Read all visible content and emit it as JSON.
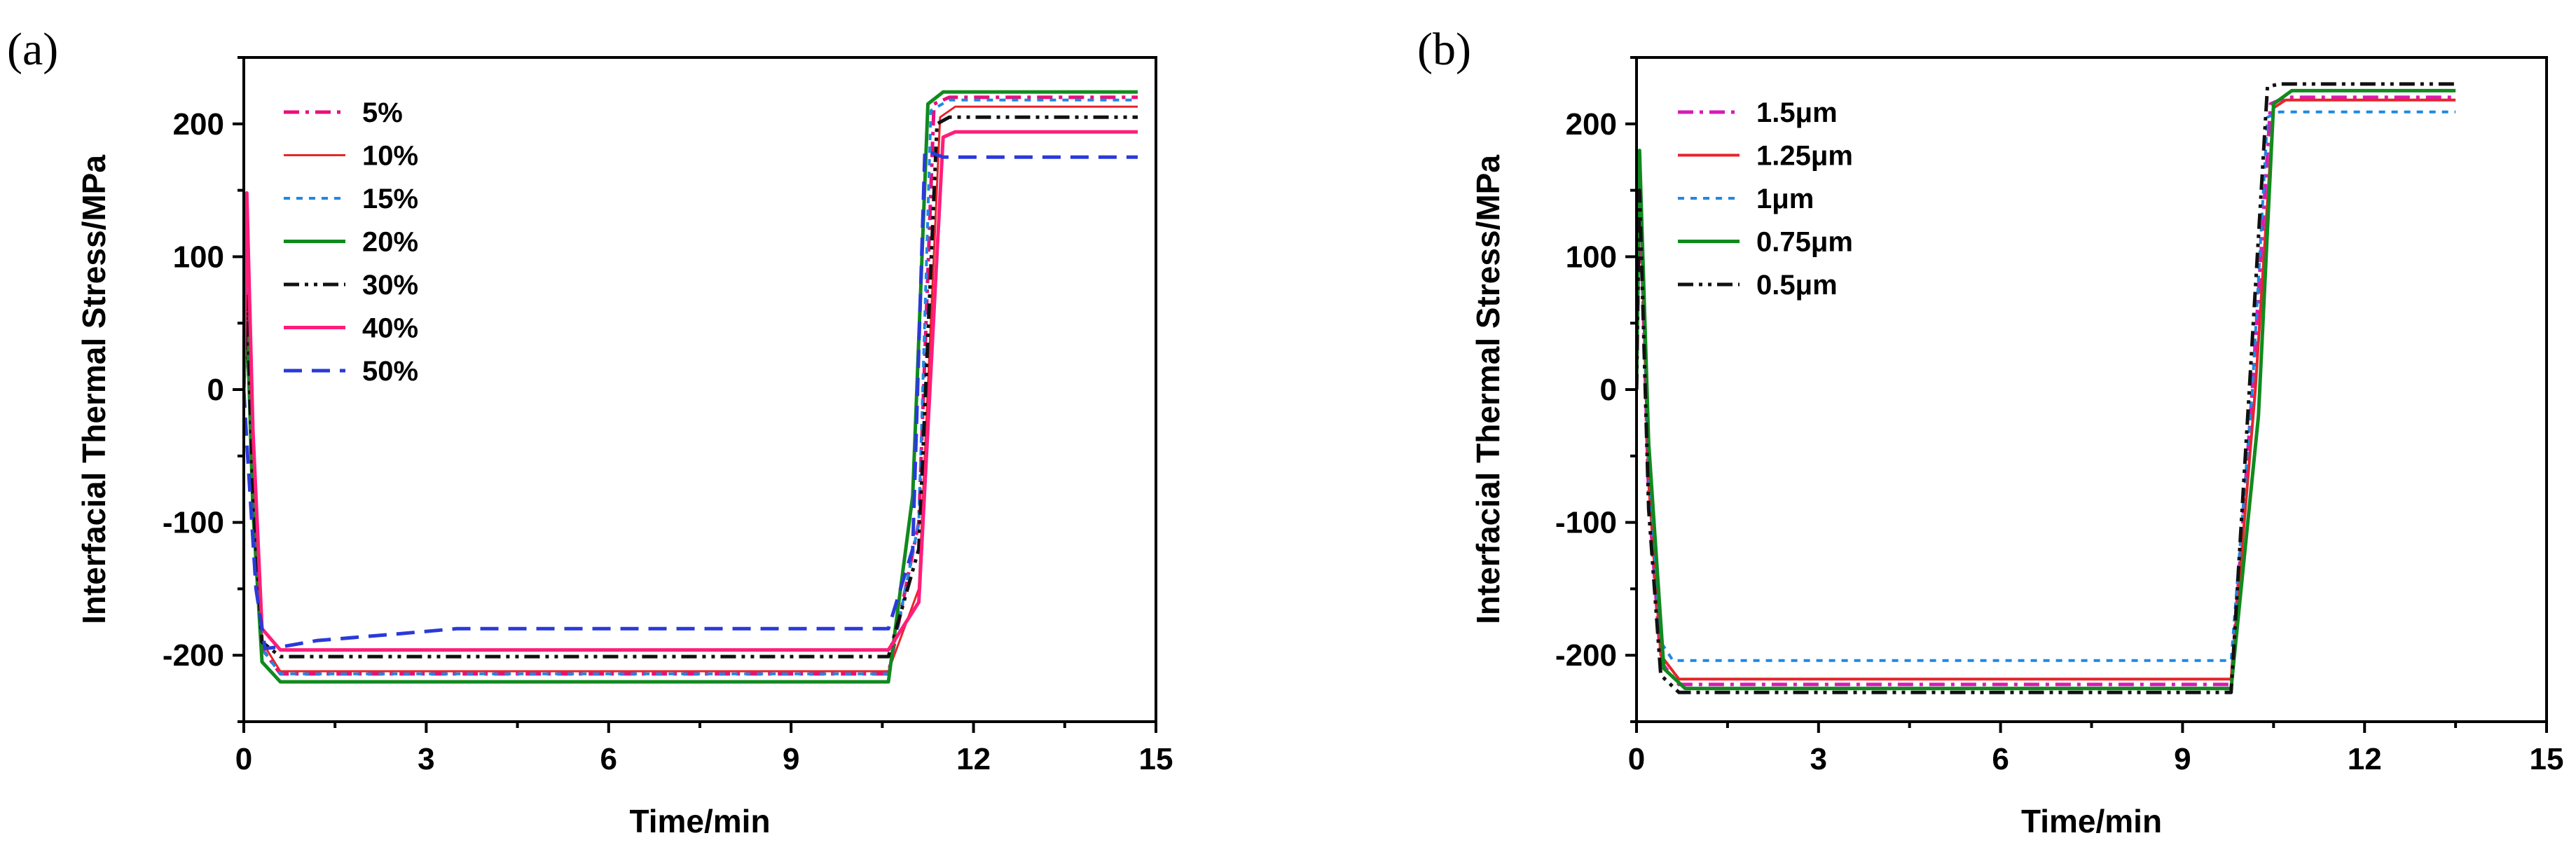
{
  "chart_data": [
    {
      "type": "line",
      "panel_label": "(a)",
      "xlabel": "Time/min",
      "ylabel": "Interfacial Thermal Stress/MPa",
      "xlim": [
        0,
        15
      ],
      "ylim": [
        -250,
        250
      ],
      "xticks": [
        0,
        3,
        6,
        9,
        12,
        15
      ],
      "yticks": [
        -200,
        -100,
        0,
        100,
        200
      ],
      "xtick_labels": [
        "0",
        "3",
        "6",
        "9",
        "12",
        "15"
      ],
      "ytick_labels": [
        "-200",
        "-100",
        "0",
        "100",
        "200"
      ],
      "legend_position": "top-left",
      "series": [
        {
          "name": "5%",
          "color": "#e8107a",
          "dash": "dashdot",
          "width": 5,
          "points": [
            [
              0,
              0
            ],
            [
              0.05,
              95
            ],
            [
              0.15,
              -60
            ],
            [
              0.3,
              -195
            ],
            [
              0.6,
              -214
            ],
            [
              1,
              -214
            ],
            [
              10.6,
              -214
            ],
            [
              11.1,
              -100
            ],
            [
              11.35,
              215
            ],
            [
              11.6,
              220
            ],
            [
              14.7,
              220
            ]
          ]
        },
        {
          "name": "10%",
          "color": "#e8242a",
          "dash": "solid",
          "width": 3,
          "points": [
            [
              0,
              0
            ],
            [
              0.05,
              135
            ],
            [
              0.15,
              -40
            ],
            [
              0.3,
              -190
            ],
            [
              0.6,
              -212
            ],
            [
              1,
              -212
            ],
            [
              10.6,
              -212
            ],
            [
              11.1,
              -150
            ],
            [
              11.45,
              205
            ],
            [
              11.7,
              213
            ],
            [
              14.7,
              213
            ]
          ]
        },
        {
          "name": "15%",
          "color": "#1e88e5",
          "dash": "dotted",
          "width": 4,
          "points": [
            [
              0,
              0
            ],
            [
              0.05,
              110
            ],
            [
              0.15,
              -50
            ],
            [
              0.3,
              -195
            ],
            [
              0.6,
              -214
            ],
            [
              1,
              -214
            ],
            [
              10.6,
              -214
            ],
            [
              11.1,
              -100
            ],
            [
              11.3,
              210
            ],
            [
              11.6,
              218
            ],
            [
              14.7,
              218
            ]
          ]
        },
        {
          "name": "20%",
          "color": "#108a1e",
          "dash": "solid",
          "width": 5,
          "points": [
            [
              0,
              0
            ],
            [
              0.05,
              60
            ],
            [
              0.15,
              -90
            ],
            [
              0.3,
              -205
            ],
            [
              0.6,
              -220
            ],
            [
              1,
              -220
            ],
            [
              10.6,
              -220
            ],
            [
              11,
              -80
            ],
            [
              11.25,
              215
            ],
            [
              11.5,
              224
            ],
            [
              14.7,
              224
            ]
          ]
        },
        {
          "name": "30%",
          "color": "#111111",
          "dash": "dashdotdot",
          "width": 5,
          "points": [
            [
              0,
              0
            ],
            [
              0.05,
              70
            ],
            [
              0.15,
              -80
            ],
            [
              0.3,
              -190
            ],
            [
              0.6,
              -201
            ],
            [
              1,
              -201
            ],
            [
              10.6,
              -201
            ],
            [
              11.1,
              -120
            ],
            [
              11.4,
              200
            ],
            [
              11.6,
              205
            ],
            [
              14.7,
              205
            ]
          ]
        },
        {
          "name": "40%",
          "color": "#ff1e7a",
          "dash": "solid",
          "width": 5,
          "points": [
            [
              0,
              0
            ],
            [
              0.05,
              148
            ],
            [
              0.15,
              -30
            ],
            [
              0.3,
              -180
            ],
            [
              0.6,
              -196
            ],
            [
              1,
              -196
            ],
            [
              10.6,
              -196
            ],
            [
              11.1,
              -160
            ],
            [
              11.5,
              190
            ],
            [
              11.7,
              194
            ],
            [
              14.7,
              194
            ]
          ]
        },
        {
          "name": "50%",
          "color": "#2a3ad8",
          "dash": "dashed",
          "width": 5,
          "points": [
            [
              0,
              0
            ],
            [
              0.05,
              -40
            ],
            [
              0.2,
              -150
            ],
            [
              0.35,
              -195
            ],
            [
              0.7,
              -193
            ],
            [
              1.2,
              -189
            ],
            [
              2.5,
              -184
            ],
            [
              3.5,
              -180
            ],
            [
              5,
              -180
            ],
            [
              10.6,
              -180
            ],
            [
              11,
              -120
            ],
            [
              11.2,
              180
            ],
            [
              11.5,
              175
            ],
            [
              14.7,
              175
            ]
          ]
        }
      ]
    },
    {
      "type": "line",
      "panel_label": "(b)",
      "xlabel": "Time/min",
      "ylabel": "Interfacial Thermal Stress/MPa",
      "xlim": [
        0,
        15
      ],
      "ylim": [
        -250,
        250
      ],
      "xticks": [
        0,
        3,
        6,
        9,
        12,
        15
      ],
      "yticks": [
        -200,
        -100,
        0,
        100,
        200
      ],
      "xtick_labels": [
        "0",
        "3",
        "6",
        "9",
        "12",
        "15"
      ],
      "ytick_labels": [
        "-200",
        "-100",
        "0",
        "100",
        "200"
      ],
      "legend_position": "top-left",
      "series": [
        {
          "name": "1.5μm",
          "color": "#d81bb5",
          "dash": "dashdot",
          "width": 5,
          "points": [
            [
              0,
              0
            ],
            [
              0.05,
              160
            ],
            [
              0.2,
              -80
            ],
            [
              0.4,
              -205
            ],
            [
              0.7,
              -222
            ],
            [
              1,
              -222
            ],
            [
              9.8,
              -222
            ],
            [
              10.15,
              0
            ],
            [
              10.45,
              215
            ],
            [
              10.7,
              220
            ],
            [
              13.5,
              220
            ]
          ]
        },
        {
          "name": "1.25μm",
          "color": "#e8242a",
          "dash": "solid",
          "width": 4,
          "points": [
            [
              0,
              0
            ],
            [
              0.05,
              165
            ],
            [
              0.2,
              -70
            ],
            [
              0.4,
              -200
            ],
            [
              0.7,
              -218
            ],
            [
              1,
              -218
            ],
            [
              9.8,
              -218
            ],
            [
              10.2,
              0
            ],
            [
              10.5,
              212
            ],
            [
              10.7,
              218
            ],
            [
              13.5,
              218
            ]
          ]
        },
        {
          "name": "1μm",
          "color": "#1e88e5",
          "dash": "dotted",
          "width": 4,
          "points": [
            [
              0,
              0
            ],
            [
              0.05,
              170
            ],
            [
              0.2,
              -60
            ],
            [
              0.4,
              -190
            ],
            [
              0.6,
              -204
            ],
            [
              1,
              -204
            ],
            [
              9.8,
              -204
            ],
            [
              10.15,
              0
            ],
            [
              10.4,
              205
            ],
            [
              10.6,
              209
            ],
            [
              13.5,
              209
            ]
          ]
        },
        {
          "name": "0.75μm",
          "color": "#108a1e",
          "dash": "solid",
          "width": 5,
          "points": [
            [
              0,
              0
            ],
            [
              0.05,
              180
            ],
            [
              0.2,
              -40
            ],
            [
              0.45,
              -210
            ],
            [
              0.8,
              -225
            ],
            [
              1,
              -225
            ],
            [
              9.8,
              -225
            ],
            [
              10.25,
              -20
            ],
            [
              10.5,
              215
            ],
            [
              10.8,
              225
            ],
            [
              13.5,
              225
            ]
          ]
        },
        {
          "name": "0.5μm",
          "color": "#111111",
          "dash": "dashdotdot",
          "width": 5,
          "points": [
            [
              0,
              0
            ],
            [
              0.05,
              150
            ],
            [
              0.2,
              -90
            ],
            [
              0.4,
              -215
            ],
            [
              0.7,
              -228
            ],
            [
              1,
              -228
            ],
            [
              9.8,
              -228
            ],
            [
              10.1,
              0
            ],
            [
              10.4,
              228
            ],
            [
              10.6,
              230
            ],
            [
              13.5,
              230
            ]
          ]
        }
      ]
    }
  ]
}
